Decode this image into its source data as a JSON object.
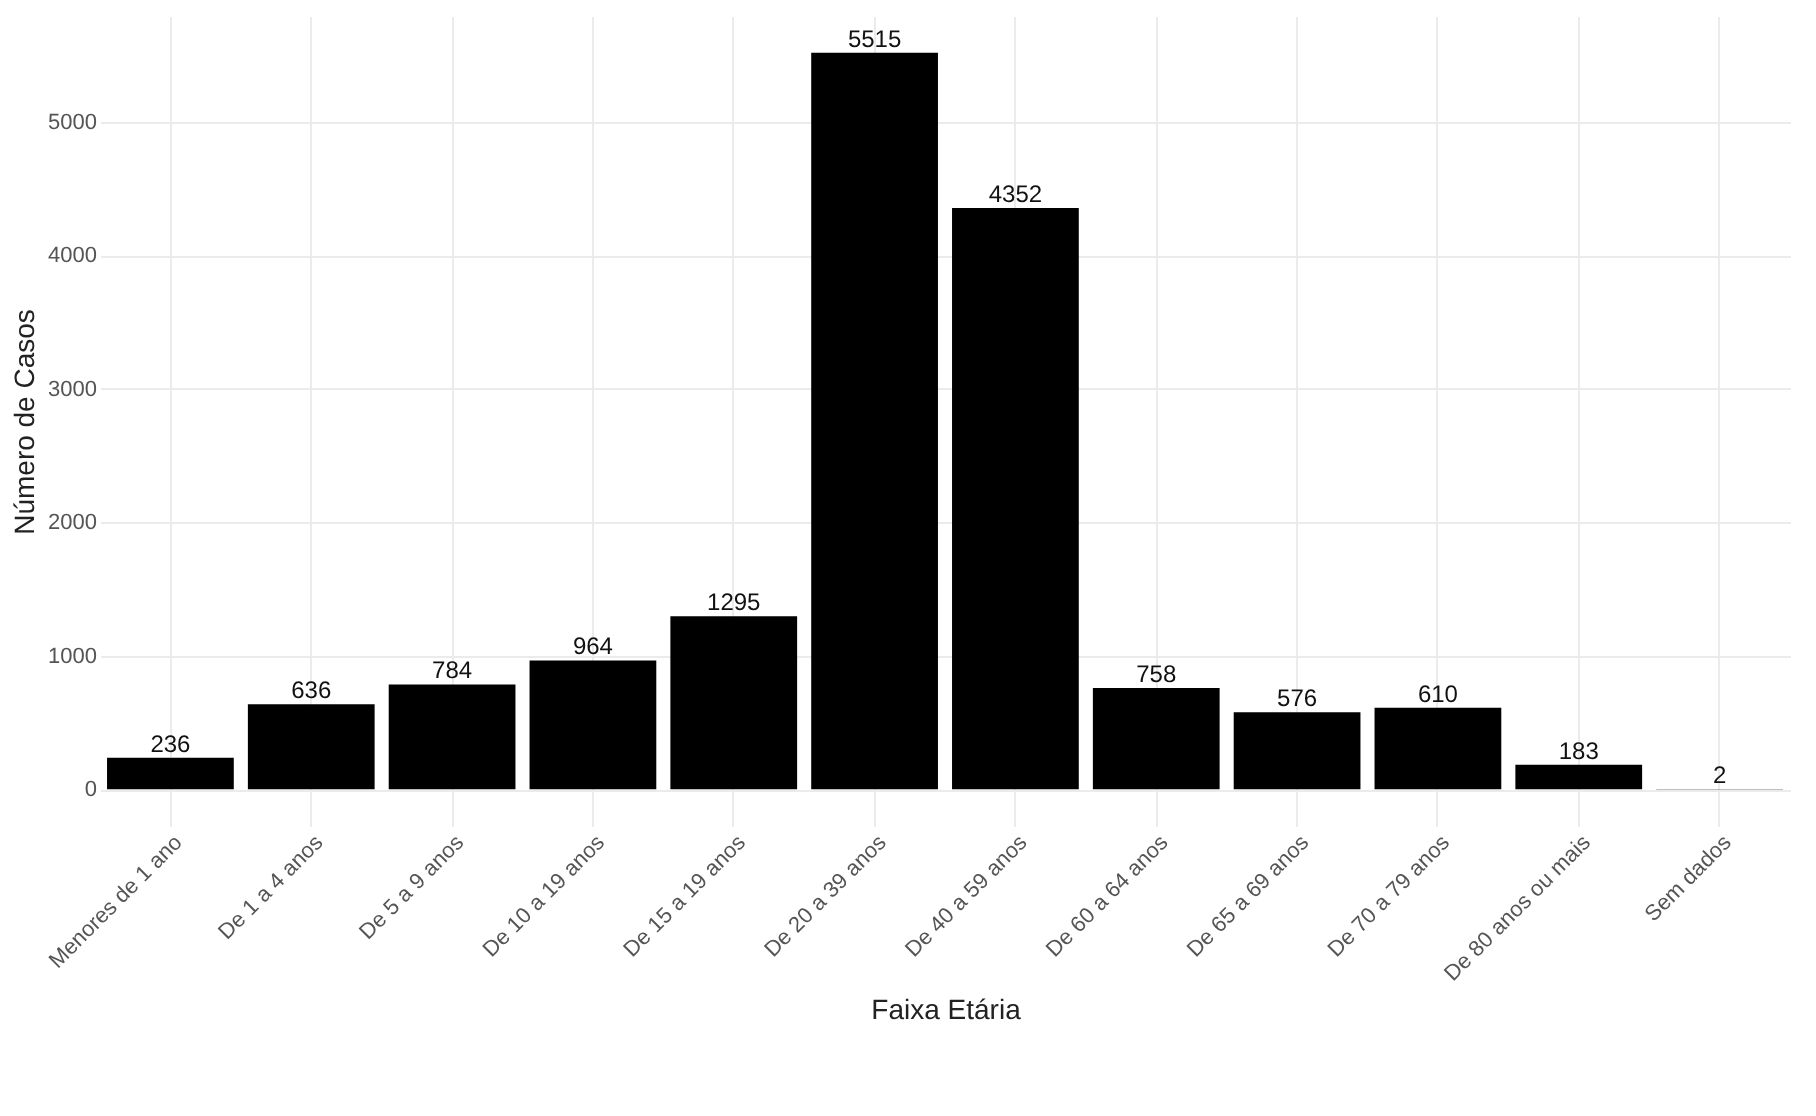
{
  "chart_data": {
    "type": "bar",
    "xlabel": "Faixa Etária",
    "ylabel": "Número de Casos",
    "categories": [
      "Menores de 1 ano",
      "De 1 a 4 anos",
      "De 5 a 9 anos",
      "De 10 a 19 anos",
      "De 15 a 19 anos",
      "De 20 a 39 anos",
      "De 40 a 59 anos",
      "De 60 a 64 anos",
      "De 65 a 69 anos",
      "De 70 a 79 anos",
      "De 80 anos ou mais",
      "Sem dados"
    ],
    "values": [
      236,
      636,
      784,
      964,
      1295,
      5515,
      4352,
      758,
      576,
      610,
      183,
      2
    ],
    "color": "#000000",
    "ylim": [
      -276,
      5791
    ],
    "yticks": [
      0,
      1000,
      2000,
      3000,
      4000,
      5000
    ],
    "grid": true,
    "data_labels": true
  }
}
